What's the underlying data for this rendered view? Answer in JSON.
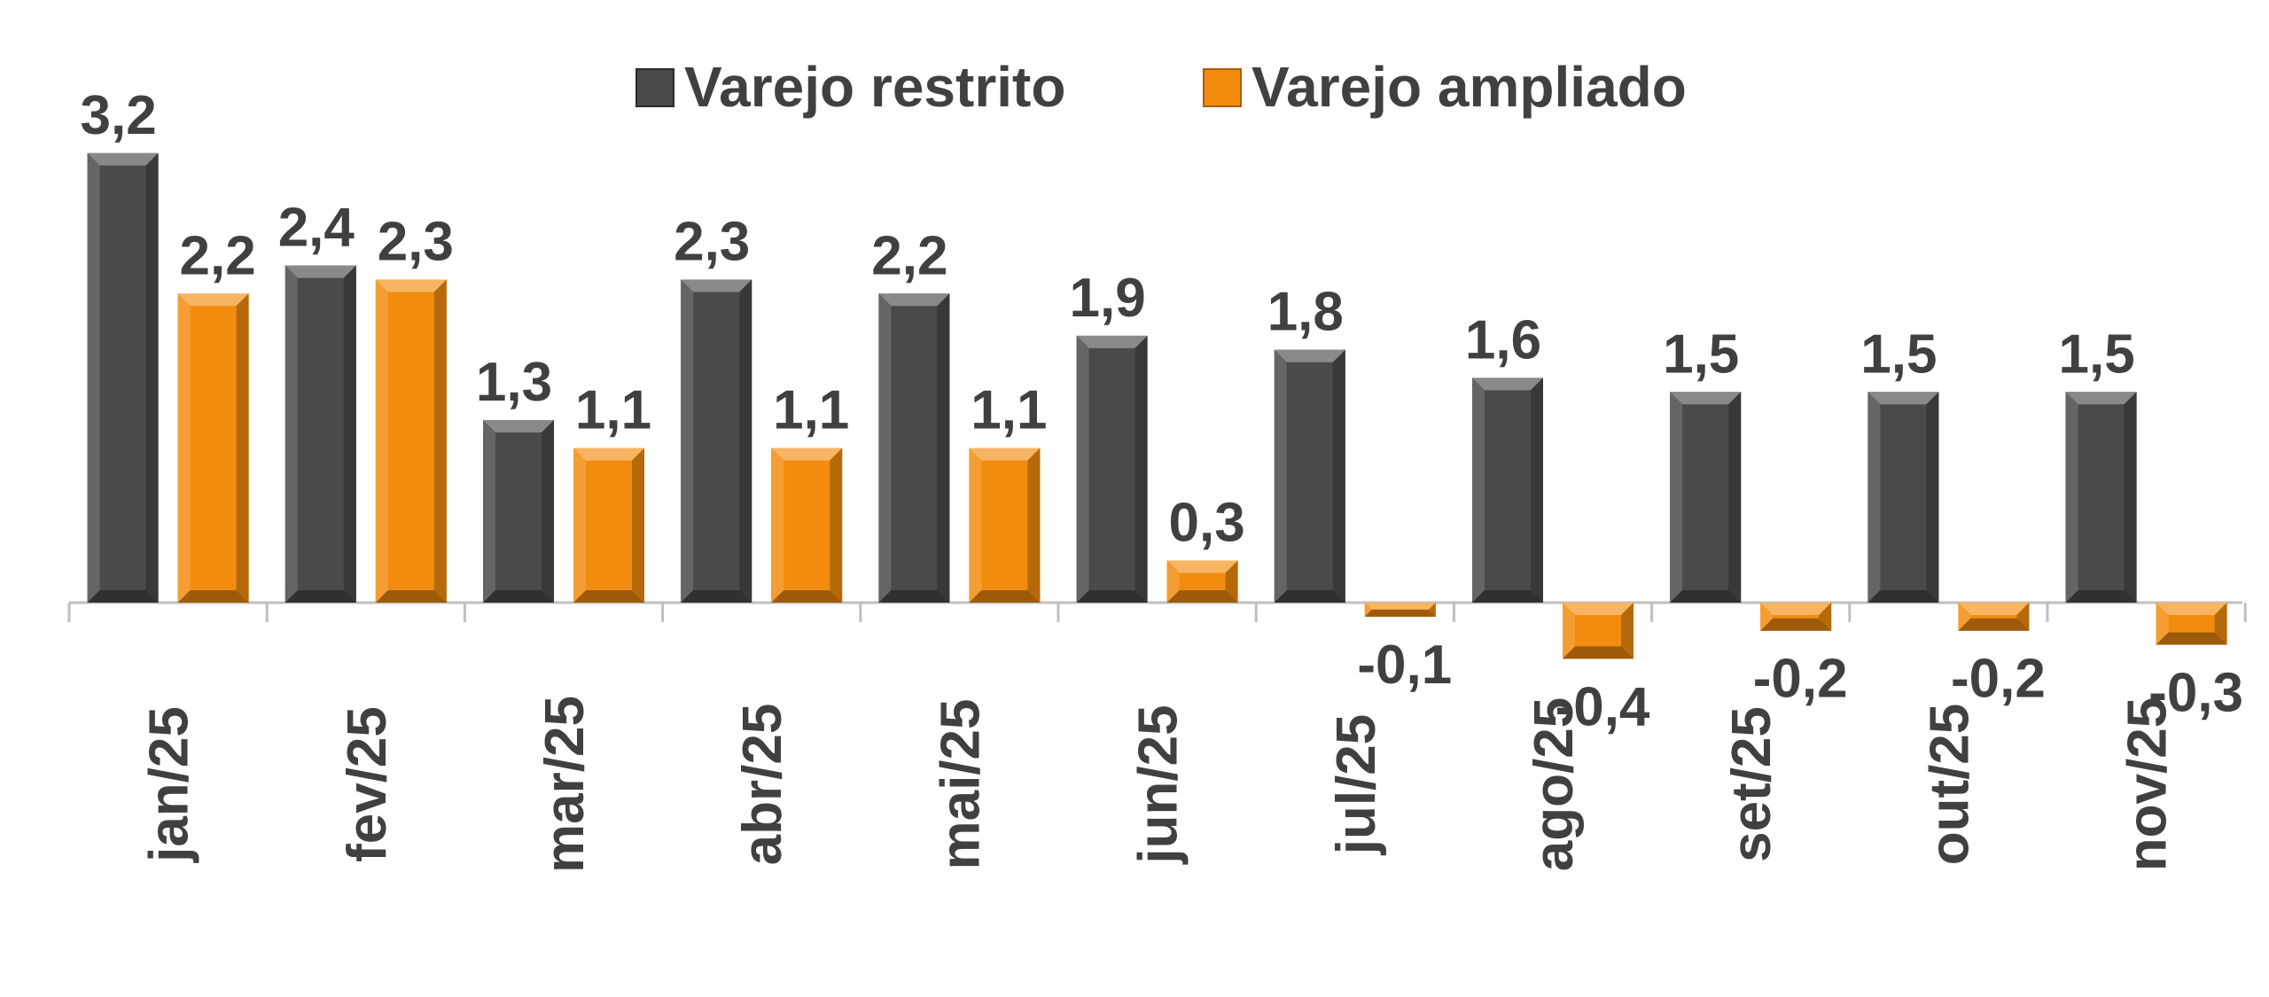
{
  "chart_data": {
    "type": "bar",
    "categories": [
      "jan/25",
      "fev/25",
      "mar/25",
      "abr/25",
      "mai/25",
      "jun/25",
      "jul/25",
      "ago/25",
      "set/25",
      "out/25",
      "nov/25"
    ],
    "series": [
      {
        "name": "Varejo restrito",
        "color": "#4a4a4a",
        "values": [
          3.2,
          2.4,
          1.3,
          2.3,
          2.2,
          1.9,
          1.8,
          1.6,
          1.5,
          1.5,
          1.5
        ]
      },
      {
        "name": "Varejo ampliado",
        "color": "#f28c0f",
        "values": [
          2.2,
          2.3,
          1.1,
          1.1,
          1.1,
          0.3,
          -0.1,
          -0.4,
          -0.2,
          -0.2,
          -0.3
        ]
      }
    ],
    "value_labels": [
      [
        "3,2",
        "2,4",
        "1,3",
        "2,3",
        "2,2",
        "1,9",
        "1,8",
        "1,6",
        "1,5",
        "1,5",
        "1,5"
      ],
      [
        "2,2",
        "2,3",
        "1,1",
        "1,1",
        "1,1",
        "0,3",
        "-0,1",
        "-0,4",
        "-0,2",
        "-0,2",
        "-0,3"
      ]
    ],
    "ylim": [
      -0.5,
      3.3
    ],
    "grid": false,
    "legend_position": "top-center",
    "tick_label_rotation": "vertical"
  }
}
